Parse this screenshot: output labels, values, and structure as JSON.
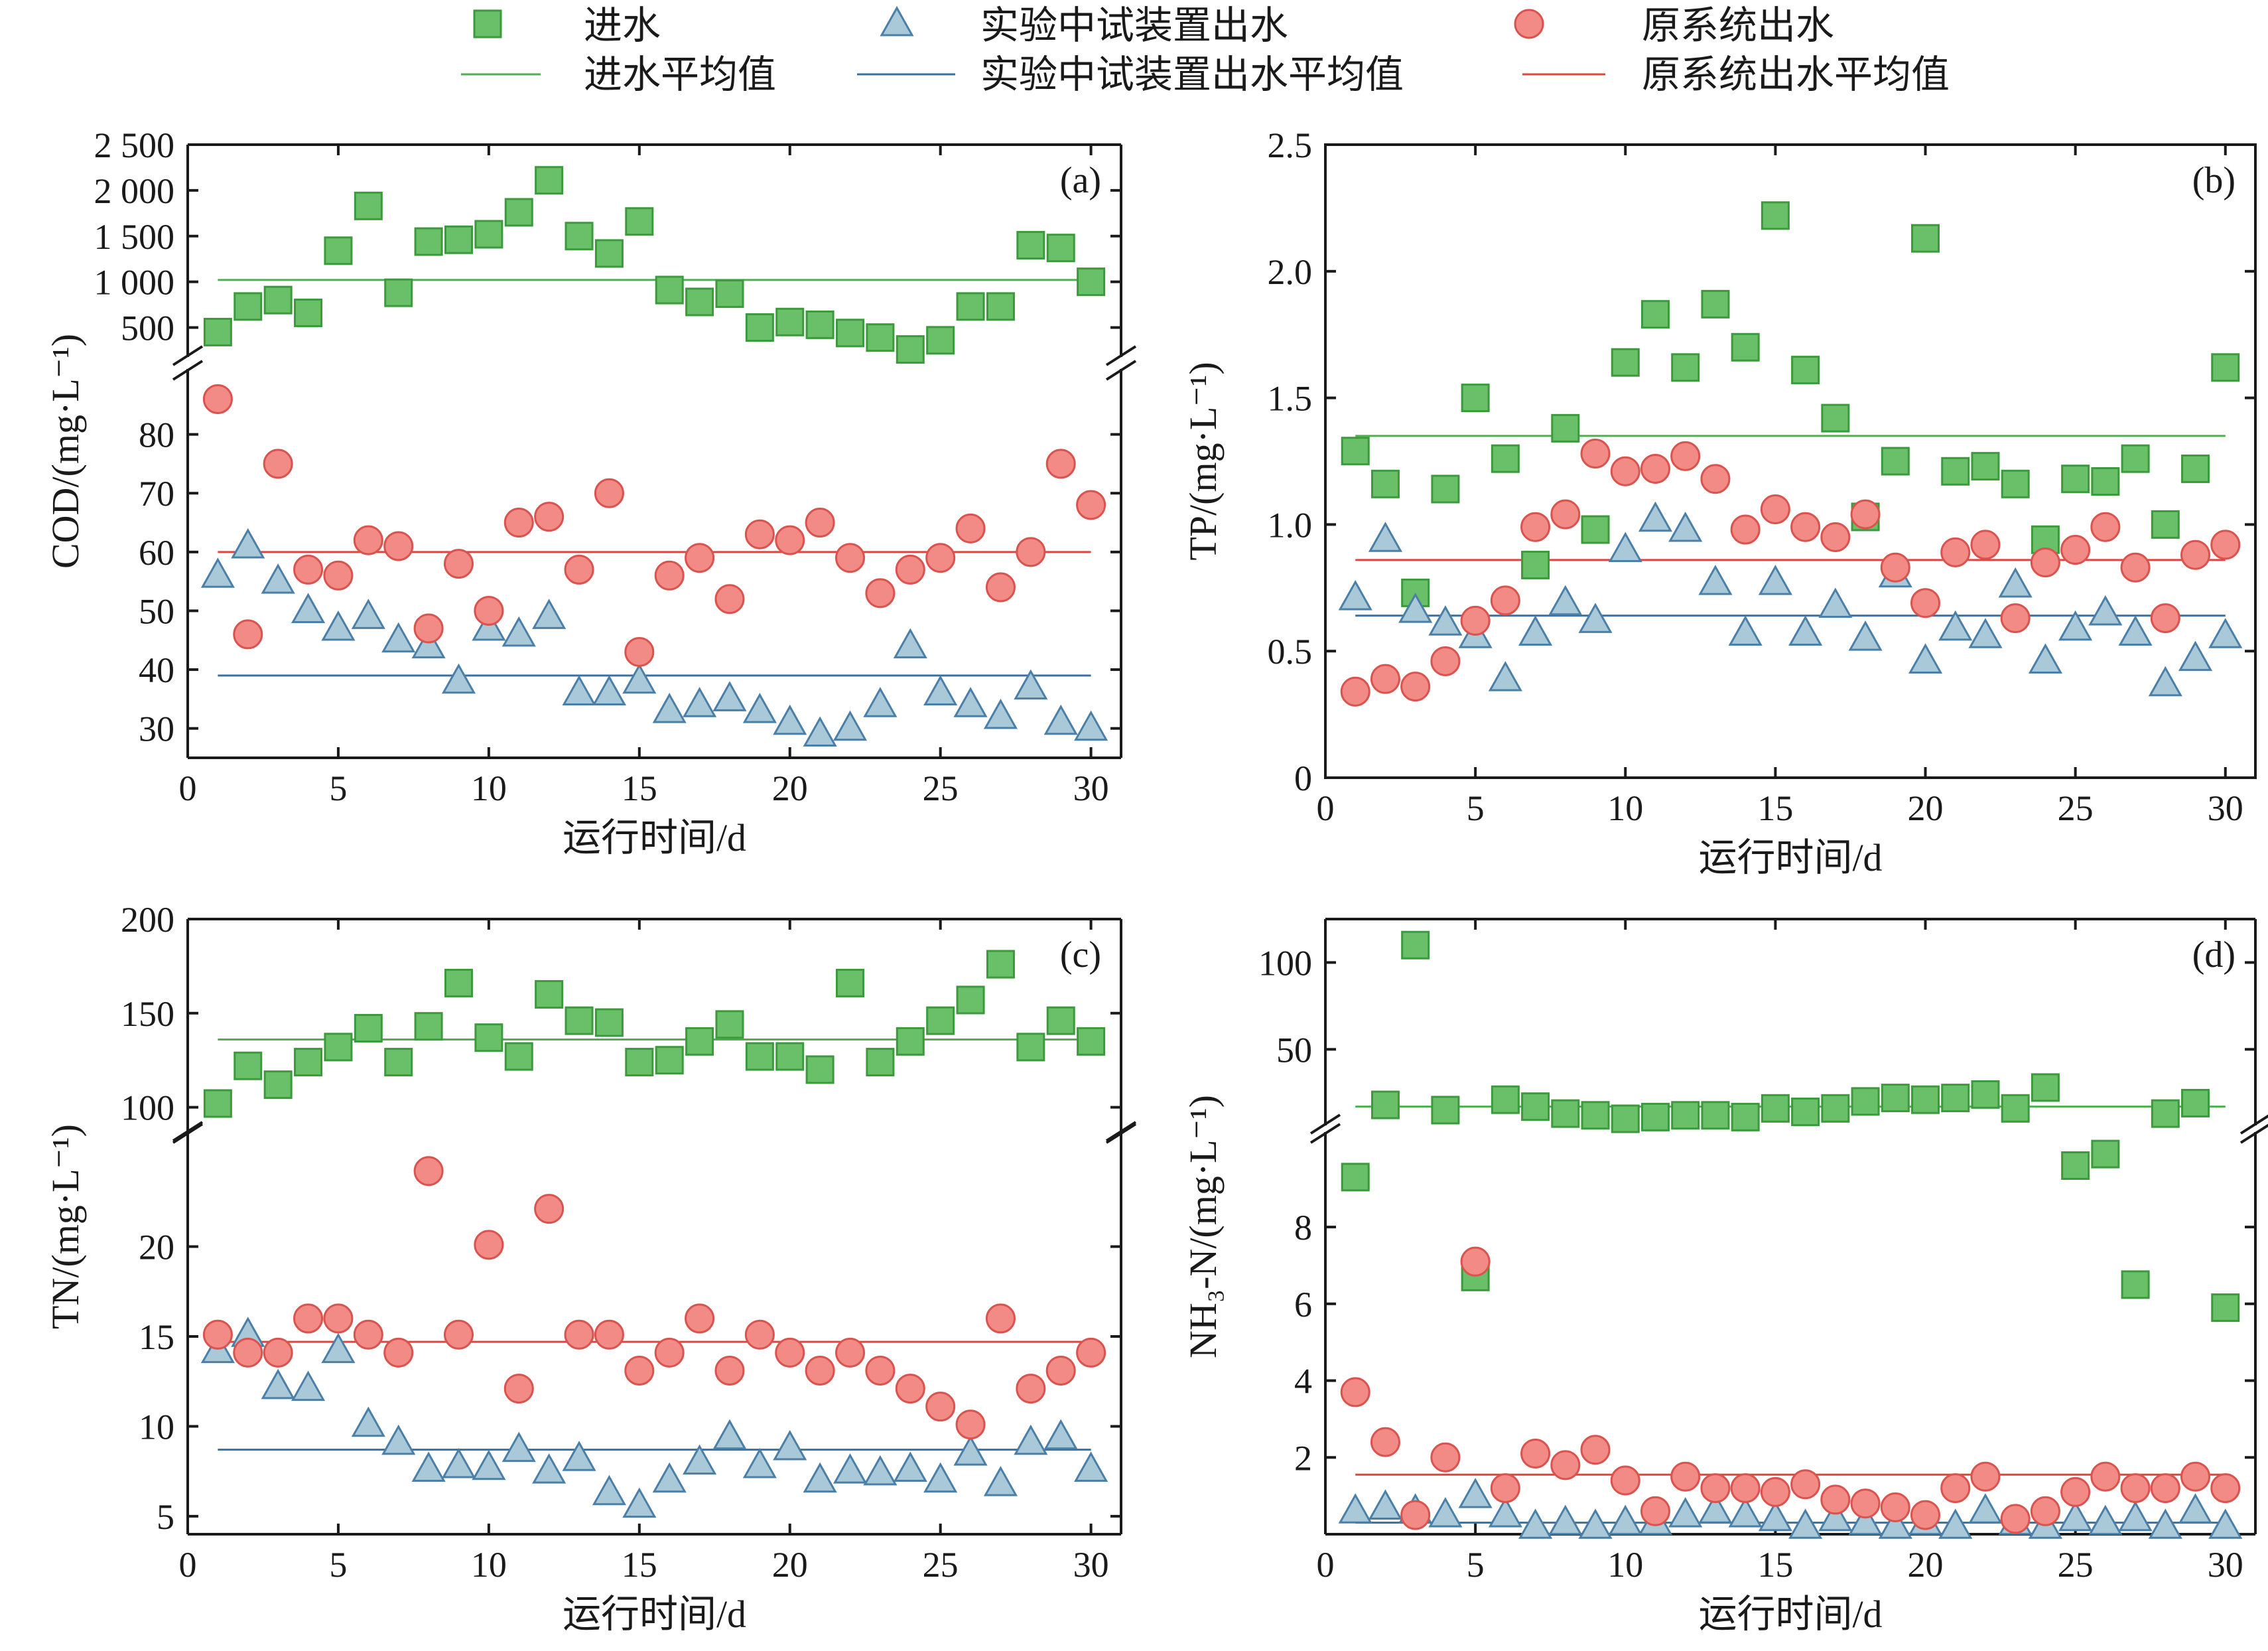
{
  "legend": {
    "items": [
      {
        "key": "inf",
        "label": "进水",
        "marker": "square"
      },
      {
        "key": "exp",
        "label": "实验中试装置出水",
        "marker": "triangle"
      },
      {
        "key": "orig",
        "label": "原系统出水",
        "marker": "circle"
      }
    ],
    "mean_items": [
      {
        "key": "inf",
        "label": "进水平均值"
      },
      {
        "key": "exp",
        "label": "实验中试装置出水平均值"
      },
      {
        "key": "orig",
        "label": "原系统出水平均值"
      }
    ]
  },
  "colors": {
    "inf_fill": "#6abf69",
    "inf_stroke": "#3c9a3c",
    "inf_line": "#4caf50",
    "exp_fill": "#a9c8d8",
    "exp_stroke": "#4a7fa8",
    "exp_line": "#3a6fa0",
    "orig_fill": "#f28b85",
    "orig_stroke": "#d9534f",
    "orig_line": "#e0443c",
    "axis": "#1a1a1a"
  },
  "chart_data": [
    {
      "id": "a",
      "type": "scatter",
      "panel_label": "(a)",
      "xlabel": "运行时间/d",
      "ylabel": "COD/(mg·L⁻¹)",
      "xlim": [
        0,
        31
      ],
      "xticks": [
        0,
        5,
        10,
        15,
        20,
        25,
        30
      ],
      "broken_axis": true,
      "upper": {
        "ylim": [
          250,
          2500
        ],
        "ticks": [
          500,
          1000,
          1500,
          2000,
          2500
        ],
        "tick_labels": [
          "500",
          "1 000",
          "1 500",
          "2 000",
          "2 500"
        ]
      },
      "lower": {
        "ylim": [
          25,
          90
        ],
        "ticks": [
          30,
          40,
          50,
          60,
          70,
          80
        ],
        "tick_labels": [
          "30",
          "40",
          "50",
          "60",
          "70",
          "80"
        ]
      },
      "x": [
        1,
        2,
        3,
        4,
        5,
        6,
        7,
        8,
        9,
        10,
        11,
        12,
        13,
        14,
        15,
        16,
        17,
        18,
        19,
        20,
        21,
        22,
        23,
        24,
        25,
        26,
        27,
        28,
        29,
        30
      ],
      "series": [
        {
          "key": "inf",
          "name": "进水",
          "axis": "upper",
          "mean": 1020,
          "values": [
            450,
            730,
            800,
            660,
            1340,
            1830,
            880,
            1440,
            1460,
            1520,
            1760,
            2110,
            1500,
            1310,
            1660,
            910,
            780,
            870,
            500,
            560,
            530,
            440,
            390,
            260,
            360,
            730,
            730,
            1400,
            1370,
            1000
          ]
        },
        {
          "key": "exp",
          "name": "实验中试装置出水",
          "axis": "lower",
          "mean": 39,
          "values": [
            56,
            61,
            55,
            50,
            47,
            49,
            45,
            44,
            38,
            47,
            46,
            49,
            36,
            36,
            38,
            33,
            34,
            35,
            33,
            31,
            29,
            30,
            34,
            44,
            36,
            34,
            32,
            37,
            31,
            30
          ]
        },
        {
          "key": "orig",
          "name": "原系统出水",
          "axis": "lower",
          "mean": 60,
          "values": [
            86,
            46,
            75,
            57,
            56,
            62,
            61,
            47,
            58,
            50,
            65,
            66,
            57,
            70,
            43,
            56,
            59,
            52,
            63,
            62,
            65,
            59,
            53,
            57,
            59,
            64,
            54,
            60,
            75,
            68
          ]
        }
      ]
    },
    {
      "id": "b",
      "type": "scatter",
      "panel_label": "(b)",
      "xlabel": "运行时间/d",
      "ylabel": "TP/(mg·L⁻¹)",
      "xlim": [
        0,
        31
      ],
      "xticks": [
        0,
        5,
        10,
        15,
        20,
        25,
        30
      ],
      "broken_axis": false,
      "ylim": [
        0,
        2.5
      ],
      "yticks": [
        0,
        0.5,
        1.0,
        1.5,
        2.0,
        2.5
      ],
      "ytick_labels": [
        "0",
        "0.5",
        "1.0",
        "1.5",
        "2.0",
        "2.5"
      ],
      "x": [
        1,
        2,
        3,
        4,
        5,
        6,
        7,
        8,
        9,
        10,
        11,
        12,
        13,
        14,
        15,
        16,
        17,
        18,
        19,
        20,
        21,
        22,
        23,
        24,
        25,
        26,
        27,
        28,
        29,
        30
      ],
      "series": [
        {
          "key": "inf",
          "name": "进水",
          "mean": 1.35,
          "values": [
            1.29,
            1.16,
            0.73,
            1.14,
            1.5,
            1.26,
            0.84,
            1.38,
            0.98,
            1.64,
            1.83,
            1.62,
            1.87,
            1.7,
            2.22,
            1.61,
            1.42,
            1.03,
            1.25,
            2.13,
            1.21,
            1.23,
            1.16,
            0.94,
            1.18,
            1.17,
            1.26,
            1.0,
            1.22,
            1.62
          ]
        },
        {
          "key": "exp",
          "name": "实验中试装置出水",
          "mean": 0.64,
          "values": [
            0.71,
            0.94,
            0.66,
            0.61,
            0.56,
            0.39,
            0.57,
            0.69,
            0.62,
            0.9,
            1.02,
            0.98,
            0.77,
            0.57,
            0.77,
            0.57,
            0.68,
            0.55,
            0.8,
            0.46,
            0.59,
            0.56,
            0.76,
            0.46,
            0.59,
            0.65,
            0.57,
            0.37,
            0.47,
            0.56
          ]
        },
        {
          "key": "orig",
          "name": "原系统出水",
          "mean": 0.86,
          "values": [
            0.34,
            0.39,
            0.36,
            0.46,
            0.62,
            0.7,
            0.99,
            1.04,
            1.28,
            1.21,
            1.22,
            1.27,
            1.18,
            0.98,
            1.06,
            0.99,
            0.95,
            1.04,
            0.83,
            0.69,
            0.89,
            0.92,
            0.63,
            0.85,
            0.9,
            0.99,
            0.83,
            0.63,
            0.88,
            0.92
          ]
        }
      ]
    },
    {
      "id": "c",
      "type": "scatter",
      "panel_label": "(c)",
      "xlabel": "运行时间/d",
      "ylabel": "TN/(mg·L⁻¹)",
      "xlim": [
        0,
        31
      ],
      "xticks": [
        0,
        5,
        10,
        15,
        20,
        25,
        30
      ],
      "broken_axis": true,
      "upper": {
        "ylim": [
          90,
          200
        ],
        "ticks": [
          100,
          150,
          200
        ],
        "tick_labels": [
          "100",
          "150",
          "200"
        ]
      },
      "lower": {
        "ylim": [
          4,
          26
        ],
        "ticks": [
          5,
          10,
          15,
          20
        ],
        "tick_labels": [
          "5",
          "10",
          "15",
          "20"
        ]
      },
      "x": [
        1,
        2,
        3,
        4,
        5,
        6,
        7,
        8,
        9,
        10,
        11,
        12,
        13,
        14,
        15,
        16,
        17,
        18,
        19,
        20,
        21,
        22,
        23,
        24,
        25,
        26,
        27,
        28,
        29,
        30
      ],
      "series": [
        {
          "key": "inf",
          "name": "进水",
          "axis": "upper",
          "mean": 136,
          "values": [
            102,
            122,
            112,
            124,
            132,
            142,
            124,
            143,
            166,
            137,
            127,
            160,
            146,
            145,
            124,
            125,
            135,
            144,
            127,
            127,
            120,
            166,
            124,
            135,
            146,
            157,
            176,
            132,
            146,
            135
          ]
        },
        {
          "key": "exp",
          "name": "实验中试装置出水",
          "axis": "lower",
          "mean": 8.7,
          "values": [
            14.2,
            15.1,
            12.2,
            12.1,
            14.2,
            10.1,
            9.1,
            7.6,
            7.8,
            7.7,
            8.7,
            7.5,
            8.2,
            6.3,
            5.6,
            7.0,
            8.0,
            9.4,
            7.8,
            8.8,
            7.0,
            7.5,
            7.4,
            7.6,
            7.0,
            8.5,
            6.8,
            9.1,
            9.4,
            7.6
          ]
        },
        {
          "key": "orig",
          "name": "原系统出水",
          "axis": "lower",
          "mean": 14.7,
          "values": [
            15.1,
            14.1,
            14.1,
            16.0,
            16.0,
            15.1,
            14.1,
            24.2,
            15.1,
            20.1,
            12.1,
            22.1,
            15.1,
            15.1,
            13.1,
            14.1,
            16.0,
            13.1,
            15.1,
            14.1,
            13.1,
            14.1,
            13.1,
            12.1,
            11.1,
            10.1,
            16.0,
            12.1,
            13.1,
            14.1
          ]
        }
      ]
    },
    {
      "id": "d",
      "type": "scatter",
      "panel_label": "(d)",
      "xlabel": "运行时间/d",
      "ylabel": "NH₃-N/(mg·L⁻¹)",
      "xlim": [
        0,
        31
      ],
      "xticks": [
        0,
        5,
        10,
        15,
        20,
        25,
        30
      ],
      "broken_axis": true,
      "upper": {
        "ylim": [
          10,
          125
        ],
        "ticks": [
          50,
          100
        ],
        "tick_labels": [
          "50",
          "100"
        ]
      },
      "lower": {
        "ylim": [
          0,
          10.3
        ],
        "ticks": [
          2,
          4,
          6,
          8
        ],
        "tick_labels": [
          "2",
          "4",
          "6",
          "8"
        ]
      },
      "x": [
        1,
        2,
        3,
        4,
        5,
        6,
        7,
        8,
        9,
        10,
        11,
        12,
        13,
        14,
        15,
        16,
        17,
        18,
        19,
        20,
        21,
        22,
        23,
        24,
        25,
        26,
        27,
        28,
        29,
        30
      ],
      "series": [
        {
          "key": "inf",
          "name": "进水",
          "axis_per_point": [
            "lower",
            "upper",
            "upper",
            "upper",
            "lower",
            "upper",
            "upper",
            "upper",
            "upper",
            "upper",
            "upper",
            "upper",
            "upper",
            "upper",
            "upper",
            "upper",
            "upper",
            "upper",
            "upper",
            "upper",
            "upper",
            "upper",
            "upper",
            "upper",
            "lower",
            "lower",
            "lower",
            "upper",
            "upper",
            "lower"
          ],
          "mean": 17,
          "values": [
            9.3,
            18,
            110,
            15,
            6.7,
            21,
            17,
            13,
            12,
            10,
            11,
            12,
            12,
            11,
            16,
            14,
            16,
            20,
            22,
            21,
            22,
            24,
            16,
            28,
            9.6,
            9.9,
            6.5,
            13,
            19,
            5.9
          ]
        },
        {
          "key": "exp",
          "name": "实验中试装置出水",
          "axis": "lower",
          "mean": 0.3,
          "values": [
            0.6,
            0.7,
            0.6,
            0.5,
            1.0,
            0.5,
            0.2,
            0.3,
            0.2,
            0.3,
            0.3,
            0.5,
            0.6,
            0.5,
            0.4,
            0.2,
            0.4,
            0.3,
            0.2,
            0.3,
            0.2,
            0.6,
            0.3,
            0.2,
            0.4,
            0.3,
            0.4,
            0.2,
            0.6,
            0.2
          ]
        },
        {
          "key": "orig",
          "name": "原系统出水",
          "axis": "lower",
          "mean": 1.55,
          "values": [
            3.7,
            2.4,
            0.5,
            2.0,
            7.1,
            1.2,
            2.1,
            1.8,
            2.2,
            1.4,
            0.6,
            1.5,
            1.2,
            1.2,
            1.1,
            1.3,
            0.9,
            0.8,
            0.7,
            0.5,
            1.2,
            1.5,
            0.4,
            0.6,
            1.1,
            1.5,
            1.2,
            1.2,
            1.5,
            1.2
          ]
        }
      ]
    }
  ]
}
